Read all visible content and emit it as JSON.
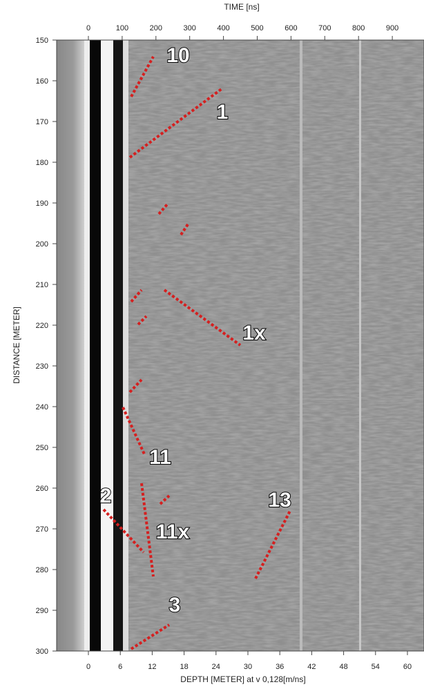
{
  "top_axis": {
    "title": "TIME [ns]",
    "ticks": [
      0,
      100,
      200,
      300,
      400,
      500,
      600,
      700,
      800,
      900
    ]
  },
  "left_axis": {
    "title": "DISTANCE [METER]",
    "ticks": [
      150,
      160,
      170,
      180,
      190,
      200,
      210,
      220,
      230,
      240,
      250,
      260,
      270,
      280,
      290,
      300
    ]
  },
  "bottom_axis": {
    "title": "DEPTH [METER] at v 0,128[m/ns]",
    "ticks": [
      0,
      6,
      12,
      18,
      24,
      30,
      36,
      42,
      48,
      54,
      60
    ]
  },
  "annotations": [
    "10",
    "1",
    "1x",
    "11",
    "2",
    "11x",
    "13",
    "3"
  ]
}
